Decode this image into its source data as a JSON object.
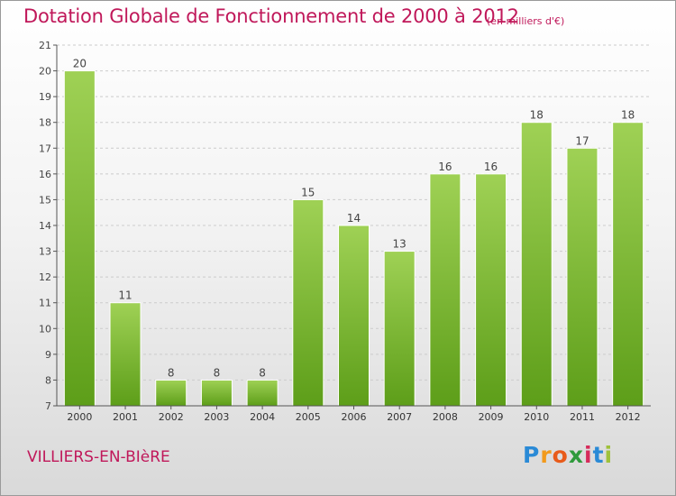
{
  "header": {
    "title": "Dotation Globale de Fonctionnement de 2000 à 2012",
    "unit": "(en milliers d'€)"
  },
  "footer": {
    "commune": "VILLIERS-EN-BIèRE",
    "brand": "Proxiti",
    "brand_letters": [
      "P",
      "r",
      "o",
      "x",
      "i",
      "t",
      "i"
    ],
    "brand_colors": [
      "#2a8ad6",
      "#f29a1c",
      "#e85b1a",
      "#2f9a3c",
      "#d62b5b",
      "#2a8ad6",
      "#9fc13a"
    ]
  },
  "colors": {
    "accent": "#c0185a",
    "bar_light": "#9fd155",
    "bar_dark": "#5d9e19",
    "axis": "#555555",
    "grid": "#cccccc"
  },
  "chart_data": {
    "type": "bar",
    "title": "Dotation Globale de Fonctionnement de 2000 à 2012",
    "xlabel": "",
    "ylabel": "(en milliers d'€)",
    "categories": [
      "2000",
      "2001",
      "2002",
      "2003",
      "2004",
      "2005",
      "2006",
      "2007",
      "2008",
      "2009",
      "2010",
      "2011",
      "2012"
    ],
    "values": [
      20,
      11,
      8,
      8,
      8,
      15,
      14,
      13,
      16,
      16,
      18,
      17,
      18
    ],
    "ylim": [
      7,
      21
    ],
    "yticks": [
      7,
      8,
      9,
      10,
      11,
      12,
      13,
      14,
      15,
      16,
      17,
      18,
      19,
      20,
      21
    ],
    "grid": true
  }
}
